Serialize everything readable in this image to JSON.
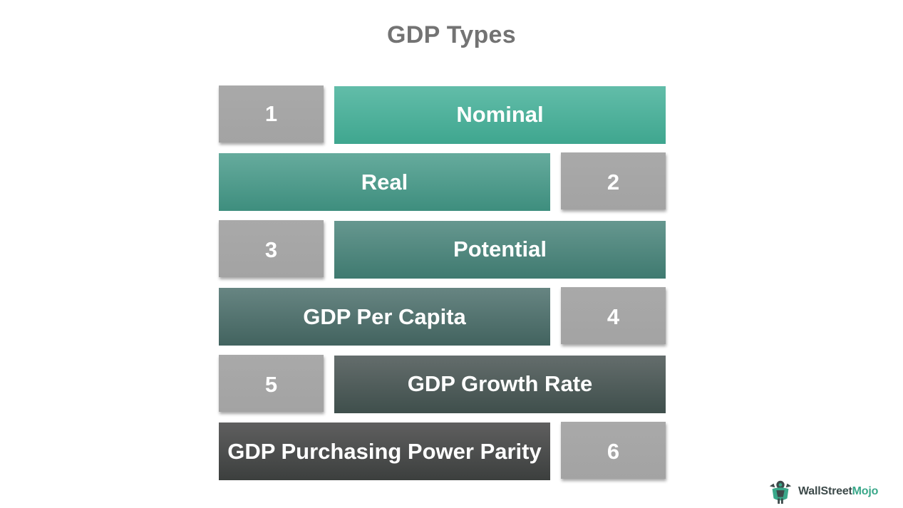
{
  "title": "GDP Types",
  "items": [
    {
      "number": "1",
      "label": "Nominal"
    },
    {
      "number": "2",
      "label": "Real"
    },
    {
      "number": "3",
      "label": "Potential"
    },
    {
      "number": "4",
      "label": "GDP Per Capita"
    },
    {
      "number": "5",
      "label": "GDP Growth Rate"
    },
    {
      "number": "6",
      "label": "GDP Purchasing Power Parity"
    }
  ],
  "logo": {
    "text_main": "WallStreet",
    "text_accent": "Mojo",
    "icon": "bull-mascot-icon",
    "accent_color": "#3aa88a"
  },
  "colors": {
    "number_box": "#a6a6a6",
    "label_gradient": [
      "#4fb39c",
      "#469a89",
      "#4f857c",
      "#4f716d",
      "#525d5b",
      "#4d4e4e"
    ]
  }
}
